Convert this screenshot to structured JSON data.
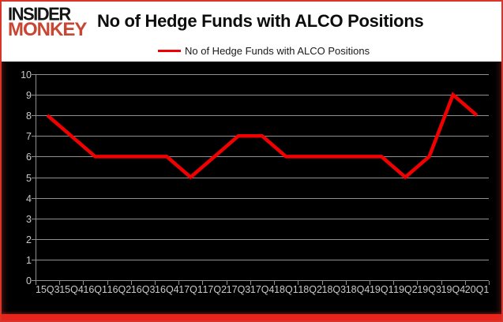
{
  "brand": {
    "line1": "INSIDER",
    "line2": "MONKEY"
  },
  "title": "No of Hedge Funds with ALCO Positions",
  "legend": {
    "label": "No of Hedge Funds with ALCO Positions"
  },
  "chart_data": {
    "type": "line",
    "title": "No of Hedge Funds with ALCO Positions",
    "categories": [
      "15Q3",
      "15Q4",
      "16Q1",
      "16Q2",
      "16Q3",
      "16Q4",
      "17Q1",
      "17Q2",
      "17Q3",
      "17Q4",
      "18Q1",
      "18Q2",
      "18Q3",
      "18Q4",
      "19Q1",
      "19Q2",
      "19Q3",
      "19Q4",
      "20Q1"
    ],
    "series": [
      {
        "name": "No of Hedge Funds with ALCO Positions",
        "values": [
          8,
          7,
          6,
          6,
          6,
          6,
          5,
          6,
          7,
          7,
          6,
          6,
          6,
          6,
          6,
          5,
          6,
          9,
          8
        ]
      }
    ],
    "xlabel": "",
    "ylabel": "",
    "ylim": [
      0,
      10
    ],
    "y_ticks": [
      10,
      9,
      8,
      7,
      6,
      5,
      4,
      3,
      2,
      1,
      0
    ],
    "grid": true,
    "legend_position": "top",
    "colors": {
      "line": "#f00000",
      "plot_background": "#000000",
      "header_background": "#ffffff",
      "gridline": "#8f8f8f",
      "axis_label": "#c9c9c9",
      "title_text": "#0d0d0d",
      "brand_black": "#151515",
      "brand_red": "#c74634",
      "frame_red": "#e8251d"
    }
  }
}
